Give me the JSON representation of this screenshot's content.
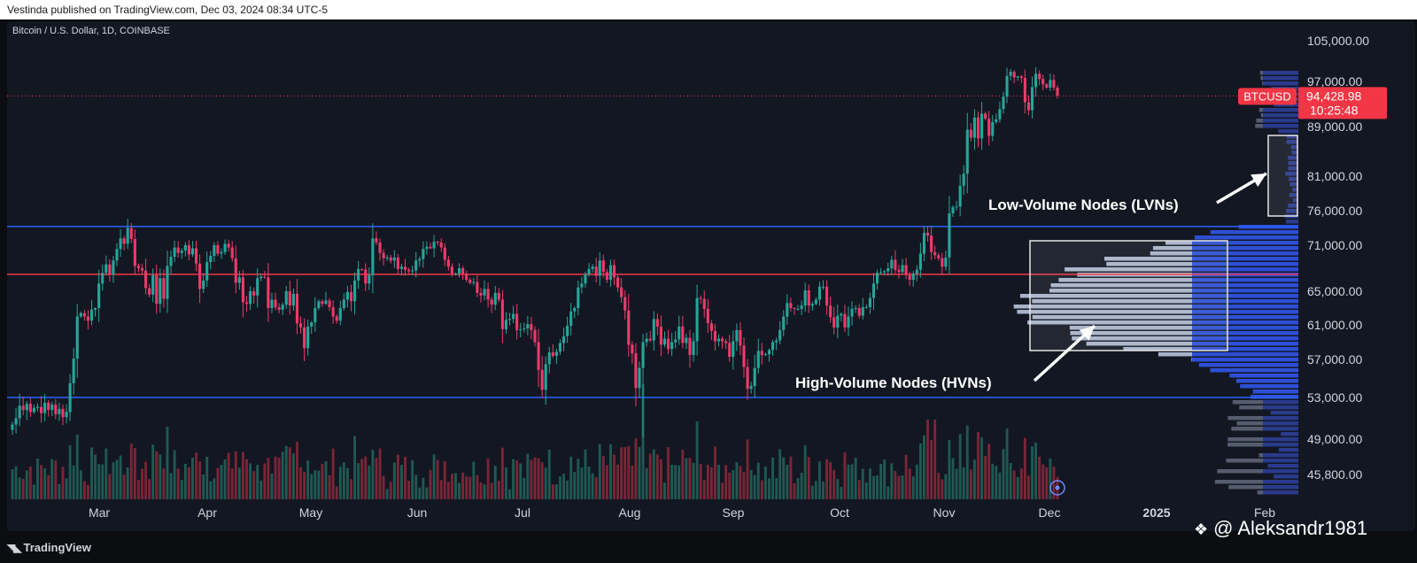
{
  "header": {
    "published": "Vestinda published on TradingView.com, Dec 03, 2024 08:34 UTC-5"
  },
  "footer": {
    "brand": "TradingView",
    "watermark": "@ Aleksandr1981"
  },
  "chart_data": {
    "type": "candlestick",
    "symbol_line": "Bitcoin / U.S. Dollar, 1D, COINBASE",
    "price_ticks": [
      "105,000.00",
      "97,000.00",
      "89,000.00",
      "81,000.00",
      "76,000.00",
      "71,000.00",
      "65,000.00",
      "61,000.00",
      "57,000.00",
      "53,000.00",
      "49,000.00",
      "45,800.00"
    ],
    "time_labels": [
      "Mar",
      "Apr",
      "May",
      "Jun",
      "Jul",
      "Aug",
      "Sep",
      "Oct",
      "Nov",
      "Dec",
      "2025",
      "Feb"
    ],
    "last_price": {
      "symbol": "BTCUSD",
      "price": "94,428.98",
      "countdown": "10:25:48",
      "value": 94428.98
    },
    "levels": [
      {
        "value": 73700,
        "color": "#2962ff"
      },
      {
        "value": 67200,
        "color": "#f23645"
      },
      {
        "value": 53000,
        "color": "#2962ff"
      }
    ],
    "annotations": [
      {
        "text": "Low-Volume Nodes (LVNs)"
      },
      {
        "text": "High-Volume Nodes (HVNs)"
      }
    ],
    "series_close": [
      50400,
      51000,
      52200,
      51800,
      52400,
      51600,
      52000,
      52100,
      51500,
      52500,
      51800,
      52300,
      51400,
      51900,
      51100,
      51600,
      54500,
      57100,
      62000,
      62400,
      62000,
      61500,
      62800,
      63000,
      66000,
      67400,
      68500,
      67200,
      69000,
      70500,
      72000,
      71200,
      73500,
      71900,
      68300,
      68000,
      67700,
      65400,
      64600,
      67100,
      63500,
      66700,
      64100,
      68300,
      69500,
      70700,
      70000,
      70300,
      71000,
      69800,
      70600,
      68600,
      65300,
      66400,
      68800,
      69600,
      71000,
      69900,
      70100,
      71200,
      70700,
      69300,
      66100,
      66800,
      63700,
      63500,
      65000,
      64500,
      66700,
      66900,
      66800,
      63000,
      64000,
      63100,
      62800,
      63400,
      65000,
      63300,
      64700,
      61200,
      60700,
      58300,
      60800,
      61300,
      63000,
      63800,
      63500,
      63900,
      63100,
      62000,
      61500,
      63000,
      64000,
      64900,
      63800,
      66400,
      67900,
      67800,
      66000,
      67100,
      72000,
      71400,
      70000,
      69300,
      69400,
      69000,
      69400,
      67900,
      68200,
      67800,
      67600,
      67700,
      69000,
      69200,
      70500,
      70800,
      70600,
      71500,
      71400,
      70700,
      69100,
      68200,
      67300,
      67300,
      68000,
      67300,
      66500,
      66100,
      66200,
      64800,
      64500,
      65300,
      64000,
      63400,
      64800,
      64000,
      60500,
      61600,
      61700,
      62300,
      60400,
      60500,
      60600,
      61100,
      60400,
      59000,
      55900,
      53800,
      56500,
      57800,
      57400,
      57900,
      58900,
      59700,
      60900,
      62600,
      63000,
      65500,
      66000,
      67200,
      67900,
      68200,
      67000,
      69000,
      67500,
      66500,
      68400,
      66800,
      65500,
      64300,
      62700,
      58700,
      57700,
      54000,
      56100,
      59000,
      59400,
      59200,
      61700,
      60800,
      58700,
      59400,
      58200,
      59000,
      59300,
      60800,
      58900,
      59500,
      57500,
      59100,
      64200,
      64100,
      62900,
      61200,
      60300,
      59100,
      59400,
      59100,
      58900,
      57300,
      59100,
      60400,
      58600,
      56200,
      53900,
      54200,
      56100,
      58000,
      57500,
      57600,
      58100,
      59000,
      59200,
      60400,
      62000,
      63600,
      63000,
      62900,
      62900,
      63300,
      65100,
      63300,
      63500,
      64000,
      65600,
      65600,
      63300,
      61900,
      60700,
      62100,
      62300,
      60700,
      62000,
      62900,
      63000,
      62100,
      63100,
      63100,
      64200,
      66000,
      67400,
      67500,
      67600,
      68000,
      69100,
      67800,
      67500,
      68400,
      67100,
      66500,
      67300,
      67800,
      69900,
      72800,
      72400,
      70100,
      69700,
      69300,
      68200,
      69400,
      75600,
      76500,
      76600,
      79600,
      81400,
      88500,
      87200,
      90600,
      87100,
      91300,
      90400,
      87500,
      89800,
      90300,
      92100,
      94300,
      98100,
      98900,
      97800,
      98000,
      97700,
      93300,
      91900,
      96000,
      98500,
      97500,
      96500,
      95900,
      97300,
      95900,
      94500
    ]
  }
}
